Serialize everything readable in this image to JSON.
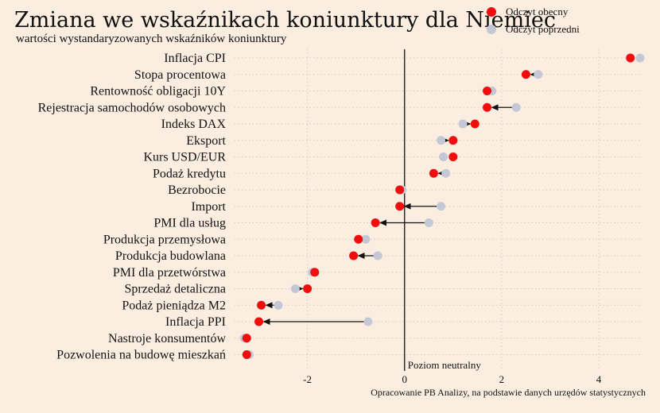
{
  "chart_data": {
    "type": "dot-arrow",
    "title": "Zmiana we wskaźnikach koniunktury dla Niemiec",
    "subtitle": "wartości wystandaryzowanych wskaźników koniunktury",
    "source": "Opracowanie PB Analizy, na podstawie danych urzędów statystycznych",
    "neutral_label": "Poziom neutralny",
    "xlim": [
      -3.5,
      4.9
    ],
    "xticks": [
      -2,
      0,
      2,
      4
    ],
    "grid": true,
    "legend_position": "top-right",
    "series": [
      {
        "name": "Odczyt obecny",
        "color": "#F00D0D"
      },
      {
        "name": "Odczyt poprzedni",
        "color": "#C4C8D6"
      }
    ],
    "categories": [
      "Inflacja CPI",
      "Stopa procentowa",
      "Rentowność obligacji 10Y",
      "Rejestracja samochodów osobowych",
      "Indeks DAX",
      "Eksport",
      "Kurs USD/EUR",
      "Podaż kredytu",
      "Bezrobocie",
      "Import",
      "PMI dla usług",
      "Produkcja przemysłowa",
      "Produkcja budowlana",
      "PMI dla przetwórstwa",
      "Sprzedaż detaliczna",
      "Podaż pieniądza M2",
      "Inflacja PPI",
      "Nastroje konsumentów",
      "Pozwolenia na budowę mieszkań"
    ],
    "current": [
      4.65,
      2.5,
      1.7,
      1.7,
      1.45,
      1.0,
      1.0,
      0.6,
      -0.1,
      -0.1,
      -0.6,
      -0.95,
      -1.05,
      -1.85,
      -2.0,
      -2.95,
      -3.0,
      -3.25,
      -3.25
    ],
    "previous": [
      4.85,
      2.75,
      1.8,
      2.3,
      1.2,
      0.75,
      0.8,
      0.85,
      -0.05,
      0.75,
      0.5,
      -0.8,
      -0.55,
      -1.9,
      -2.25,
      -2.6,
      -0.75,
      -3.3,
      -3.2
    ]
  }
}
